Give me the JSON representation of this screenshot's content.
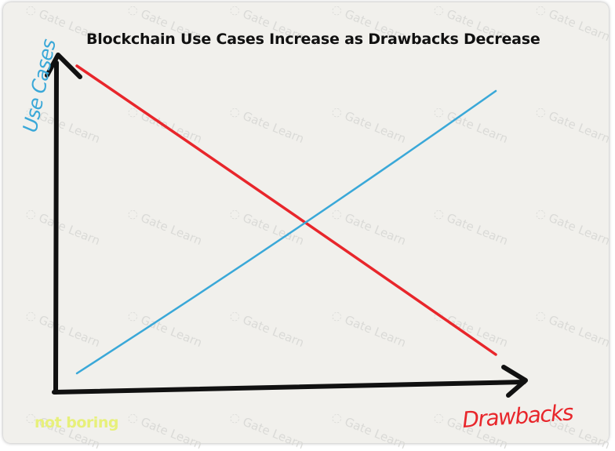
{
  "chart_data": {
    "type": "line",
    "title": "Blockchain Use Cases Increase as Drawbacks Decrease",
    "xlabel": "Drawbacks",
    "ylabel": "Use Cases",
    "xlim": [
      0,
      100
    ],
    "ylim": [
      0,
      100
    ],
    "grid": false,
    "series": [
      {
        "color": "#e8262b",
        "x": [
          0,
          100
        ],
        "y": [
          100,
          8
        ]
      },
      {
        "color": "#3aa8d8",
        "x": [
          0,
          100
        ],
        "y": [
          2,
          92
        ]
      }
    ]
  },
  "branding": {
    "label": "not boring",
    "color": "#e7f07a"
  },
  "watermark": {
    "text": "Gate Learn"
  },
  "colors": {
    "axis": "#111111",
    "ylabel": "#3aa8d8",
    "xlabel": "#e8262b"
  }
}
